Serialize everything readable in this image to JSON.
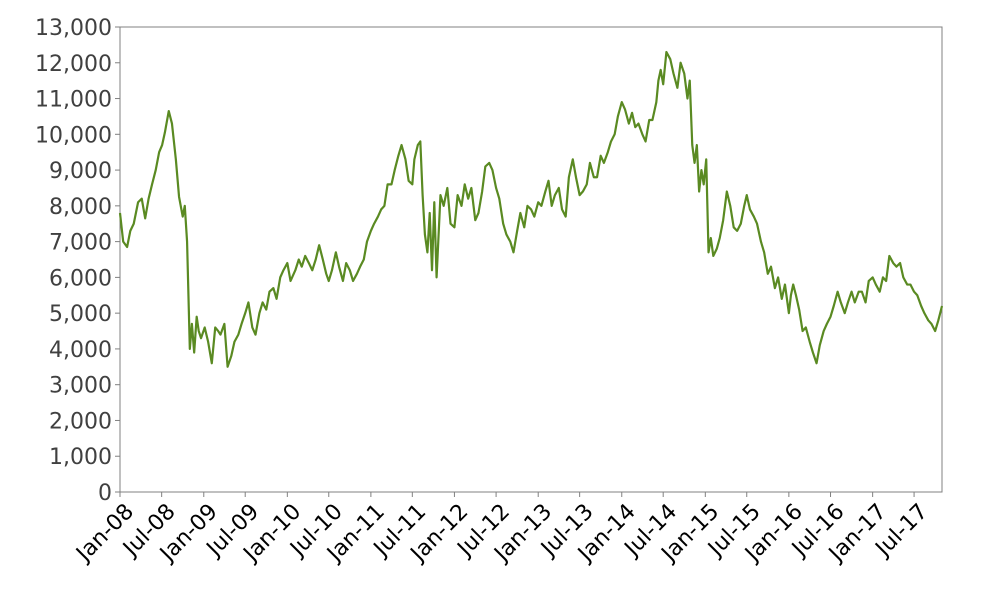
{
  "chart_data": {
    "type": "line",
    "title": "",
    "xlabel": "",
    "ylabel": "",
    "ylim": [
      0,
      13000
    ],
    "xlim": [
      "2008-01-01",
      "2017-10-31"
    ],
    "grid": false,
    "legend": "none",
    "line_color": "#5a8a22",
    "y_ticks": [
      0,
      1000,
      2000,
      3000,
      4000,
      5000,
      6000,
      7000,
      8000,
      9000,
      10000,
      11000,
      12000,
      13000
    ],
    "y_tick_labels": [
      "0",
      "1,000",
      "2,000",
      "3,000",
      "4,000",
      "5,000",
      "6,000",
      "7,000",
      "8,000",
      "9,000",
      "10,000",
      "11,000",
      "12,000",
      "13,000"
    ],
    "x_ticks": [
      {
        "label": "Jan-08",
        "date": "2008-01-01"
      },
      {
        "label": "Jul-08",
        "date": "2008-07-01"
      },
      {
        "label": "Jan-09",
        "date": "2009-01-01"
      },
      {
        "label": "Jul-09",
        "date": "2009-07-01"
      },
      {
        "label": "Jan-10",
        "date": "2010-01-01"
      },
      {
        "label": "Jul-10",
        "date": "2010-07-01"
      },
      {
        "label": "Jan-11",
        "date": "2011-01-01"
      },
      {
        "label": "Jul-11",
        "date": "2011-07-01"
      },
      {
        "label": "Jan-12",
        "date": "2012-01-01"
      },
      {
        "label": "Jul-12",
        "date": "2012-07-01"
      },
      {
        "label": "Jan-13",
        "date": "2013-01-01"
      },
      {
        "label": "Jul-13",
        "date": "2013-07-01"
      },
      {
        "label": "Jan-14",
        "date": "2014-01-01"
      },
      {
        "label": "Jul-14",
        "date": "2014-07-01"
      },
      {
        "label": "Jan-15",
        "date": "2015-01-01"
      },
      {
        "label": "Jul-15",
        "date": "2015-07-01"
      },
      {
        "label": "Jan-16",
        "date": "2016-01-01"
      },
      {
        "label": "Jul-16",
        "date": "2016-07-01"
      },
      {
        "label": "Jan-17",
        "date": "2017-01-01"
      },
      {
        "label": "Jul-17",
        "date": "2017-07-01"
      }
    ],
    "series": [
      {
        "x": [
          "2008-01-01",
          "2008-01-15",
          "2008-02-01",
          "2008-02-15",
          "2008-03-01",
          "2008-03-20",
          "2008-04-05",
          "2008-04-20",
          "2008-05-05",
          "2008-05-20",
          "2008-06-05",
          "2008-06-20",
          "2008-07-03",
          "2008-07-15",
          "2008-08-01",
          "2008-08-15",
          "2008-09-01",
          "2008-09-15",
          "2008-10-01",
          "2008-10-10",
          "2008-10-20",
          "2008-11-01",
          "2008-11-10",
          "2008-11-20",
          "2008-12-01",
          "2008-12-10",
          "2008-12-20",
          "2009-01-05",
          "2009-01-20",
          "2009-02-05",
          "2009-02-20",
          "2009-03-05",
          "2009-03-15",
          "2009-04-01",
          "2009-04-15",
          "2009-05-01",
          "2009-05-15",
          "2009-06-01",
          "2009-06-15",
          "2009-07-01",
          "2009-07-15",
          "2009-08-01",
          "2009-08-15",
          "2009-09-01",
          "2009-09-15",
          "2009-10-01",
          "2009-10-15",
          "2009-11-01",
          "2009-11-15",
          "2009-12-01",
          "2009-12-15",
          "2010-01-01",
          "2010-01-15",
          "2010-02-05",
          "2010-02-20",
          "2010-03-05",
          "2010-03-20",
          "2010-04-05",
          "2010-04-20",
          "2010-05-05",
          "2010-05-20",
          "2010-06-05",
          "2010-06-20",
          "2010-07-01",
          "2010-07-15",
          "2010-08-01",
          "2010-08-15",
          "2010-09-01",
          "2010-09-15",
          "2010-10-01",
          "2010-10-15",
          "2010-11-01",
          "2010-11-15",
          "2010-12-01",
          "2010-12-15",
          "2011-01-01",
          "2011-01-15",
          "2011-02-01",
          "2011-02-15",
          "2011-03-01",
          "2011-03-15",
          "2011-04-01",
          "2011-04-15",
          "2011-05-01",
          "2011-05-15",
          "2011-06-01",
          "2011-06-15",
          "2011-07-01",
          "2011-07-10",
          "2011-07-25",
          "2011-08-05",
          "2011-08-15",
          "2011-08-25",
          "2011-09-05",
          "2011-09-15",
          "2011-09-25",
          "2011-10-05",
          "2011-10-15",
          "2011-11-01",
          "2011-11-15",
          "2011-12-01",
          "2011-12-15",
          "2012-01-01",
          "2012-01-15",
          "2012-02-01",
          "2012-02-15",
          "2012-03-01",
          "2012-03-15",
          "2012-04-01",
          "2012-04-15",
          "2012-05-01",
          "2012-05-15",
          "2012-06-01",
          "2012-06-15",
          "2012-07-01",
          "2012-07-15",
          "2012-08-01",
          "2012-08-15",
          "2012-09-01",
          "2012-09-15",
          "2012-10-01",
          "2012-10-15",
          "2012-11-01",
          "2012-11-15",
          "2012-12-01",
          "2012-12-15",
          "2013-01-01",
          "2013-01-15",
          "2013-02-01",
          "2013-02-15",
          "2013-03-01",
          "2013-03-15",
          "2013-04-01",
          "2013-04-15",
          "2013-05-01",
          "2013-05-15",
          "2013-06-01",
          "2013-06-15",
          "2013-07-01",
          "2013-07-15",
          "2013-08-01",
          "2013-08-15",
          "2013-09-01",
          "2013-09-15",
          "2013-10-01",
          "2013-10-15",
          "2013-11-01",
          "2013-11-15",
          "2013-12-01",
          "2013-12-15",
          "2014-01-01",
          "2014-01-15",
          "2014-02-01",
          "2014-02-15",
          "2014-03-01",
          "2014-03-15",
          "2014-04-01",
          "2014-04-15",
          "2014-05-01",
          "2014-05-15",
          "2014-06-01",
          "2014-06-10",
          "2014-06-20",
          "2014-07-01",
          "2014-07-15",
          "2014-08-01",
          "2014-08-15",
          "2014-09-01",
          "2014-09-15",
          "2014-10-01",
          "2014-10-15",
          "2014-10-25",
          "2014-11-05",
          "2014-11-15",
          "2014-11-25",
          "2014-12-05",
          "2014-12-15",
          "2014-12-25",
          "2015-01-05",
          "2015-01-15",
          "2015-01-25",
          "2015-02-05",
          "2015-02-20",
          "2015-03-05",
          "2015-03-20",
          "2015-04-05",
          "2015-04-20",
          "2015-05-05",
          "2015-05-20",
          "2015-06-05",
          "2015-06-20",
          "2015-07-01",
          "2015-07-15",
          "2015-08-01",
          "2015-08-15",
          "2015-09-01",
          "2015-09-15",
          "2015-10-01",
          "2015-10-15",
          "2015-11-01",
          "2015-11-15",
          "2015-12-01",
          "2015-12-15",
          "2016-01-01",
          "2016-01-10",
          "2016-01-20",
          "2016-02-01",
          "2016-02-15",
          "2016-03-01",
          "2016-03-15",
          "2016-04-01",
          "2016-04-15",
          "2016-05-01",
          "2016-05-15",
          "2016-06-01",
          "2016-06-15",
          "2016-07-01",
          "2016-07-15",
          "2016-08-01",
          "2016-08-15",
          "2016-09-01",
          "2016-09-15",
          "2016-10-01",
          "2016-10-15",
          "2016-11-01",
          "2016-11-15",
          "2016-12-01",
          "2016-12-15",
          "2017-01-01",
          "2017-01-15",
          "2017-02-01",
          "2017-02-15",
          "2017-03-01",
          "2017-03-15",
          "2017-04-01",
          "2017-04-15",
          "2017-05-01",
          "2017-05-15",
          "2017-06-01",
          "2017-06-15",
          "2017-07-01",
          "2017-07-15",
          "2017-08-01",
          "2017-08-15",
          "2017-09-01",
          "2017-09-15",
          "2017-10-01",
          "2017-10-15",
          "2017-10-31"
        ],
        "values": [
          7800,
          7000,
          6850,
          7300,
          7500,
          8100,
          8200,
          7650,
          8200,
          8600,
          9000,
          9500,
          9700,
          10050,
          10650,
          10300,
          9300,
          8250,
          7700,
          8000,
          7000,
          4000,
          4700,
          3900,
          4900,
          4500,
          4300,
          4600,
          4200,
          3600,
          4600,
          4500,
          4400,
          4700,
          3500,
          3800,
          4200,
          4400,
          4700,
          5000,
          5300,
          4600,
          4400,
          5000,
          5300,
          5100,
          5600,
          5700,
          5400,
          6000,
          6200,
          6400,
          5900,
          6200,
          6500,
          6300,
          6600,
          6400,
          6200,
          6500,
          6900,
          6500,
          6100,
          5900,
          6200,
          6700,
          6300,
          5900,
          6400,
          6200,
          5900,
          6100,
          6300,
          6500,
          7000,
          7300,
          7500,
          7700,
          7900,
          8000,
          8600,
          8600,
          9000,
          9400,
          9700,
          9300,
          8700,
          8600,
          9300,
          9700,
          9800,
          8300,
          7200,
          6700,
          7800,
          6200,
          8100,
          6000,
          8300,
          8000,
          8500,
          7500,
          7400,
          8300,
          8000,
          8600,
          8200,
          8500,
          7600,
          7800,
          8400,
          9100,
          9200,
          9000,
          8500,
          8200,
          7500,
          7200,
          7000,
          6700,
          7300,
          7800,
          7400,
          8000,
          7900,
          7700,
          8100,
          8000,
          8400,
          8700,
          8000,
          8300,
          8500,
          7900,
          7700,
          8800,
          9300,
          8800,
          8300,
          8400,
          8600,
          9200,
          8800,
          8800,
          9400,
          9200,
          9500,
          9800,
          10000,
          10500,
          10900,
          10700,
          10300,
          10600,
          10200,
          10300,
          10000,
          9800,
          10400,
          10400,
          10900,
          11500,
          11800,
          11400,
          12300,
          12100,
          11700,
          11300,
          12000,
          11700,
          11000,
          11500,
          9700,
          9200,
          9700,
          8400,
          9000,
          8600,
          9300,
          6700,
          7100,
          6600,
          6800,
          7100,
          7600,
          8400,
          8000,
          7400,
          7300,
          7500,
          8000,
          8300,
          7900,
          7700,
          7500,
          7000,
          6700,
          6100,
          6300,
          5700,
          6000,
          5400,
          5800,
          5000,
          5500,
          5800,
          5500,
          5100,
          4500,
          4600,
          4200,
          3900,
          3600,
          4100,
          4500,
          4700,
          4900,
          5200,
          5600,
          5300,
          5000,
          5300,
          5600,
          5300,
          5600,
          5600,
          5300,
          5900,
          6000,
          5800,
          5600,
          6000,
          5900,
          6600,
          6400,
          6300,
          6400,
          6000,
          5800,
          5800,
          5600,
          5500,
          5200,
          5000,
          4800,
          4700,
          4500,
          4800,
          5200
        ]
      }
    ]
  }
}
